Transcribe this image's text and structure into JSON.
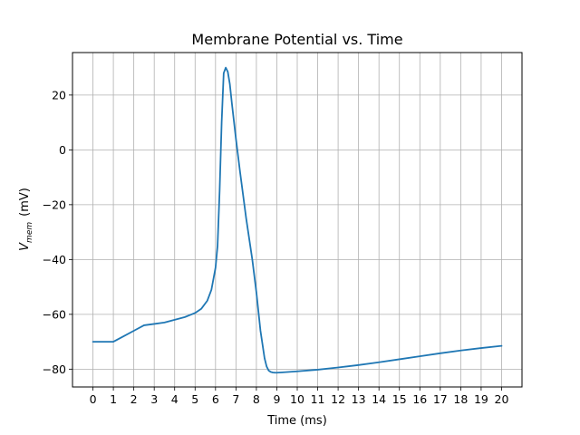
{
  "chart_data": {
    "type": "line",
    "title": "Membrane Potential vs. Time",
    "xlabel": "Time (ms)",
    "ylabel": {
      "base": "V",
      "sub": "mem",
      "unit": "(mV)"
    },
    "xlim": [
      -1,
      21
    ],
    "ylim": [
      -86.5,
      35.5
    ],
    "xticks": [
      0,
      1,
      2,
      3,
      4,
      5,
      6,
      7,
      8,
      9,
      10,
      11,
      12,
      13,
      14,
      15,
      16,
      17,
      18,
      19,
      20
    ],
    "xtick_labels": [
      "0",
      "1",
      "2",
      "3",
      "4",
      "5",
      "6",
      "7",
      "8",
      "9",
      "10",
      "11",
      "12",
      "13",
      "14",
      "15",
      "16",
      "17",
      "18",
      "19",
      "20"
    ],
    "yticks": [
      -80,
      -60,
      -40,
      -20,
      0,
      20
    ],
    "ytick_labels": [
      "−80",
      "−60",
      "−40",
      "−20",
      "0",
      "20"
    ],
    "grid": true,
    "series": [
      {
        "color": "#1f77b4",
        "x": [
          0,
          1,
          1.5,
          2,
          2.5,
          3,
          3.5,
          4,
          4.5,
          5,
          5.3,
          5.6,
          5.8,
          6.0,
          6.1,
          6.2,
          6.3,
          6.4,
          6.5,
          6.6,
          6.7,
          6.8,
          7.0,
          7.2,
          7.5,
          7.8,
          8.0,
          8.2,
          8.4,
          8.5,
          8.6,
          8.7,
          8.8,
          8.9,
          9.0,
          9.2,
          10,
          11,
          12,
          13,
          14,
          15,
          16,
          17,
          18,
          19,
          20
        ],
        "y": [
          -70,
          -70,
          -68,
          -66,
          -64,
          -63.5,
          -63,
          -62,
          -61,
          -59.5,
          -58,
          -55,
          -51,
          -43,
          -35,
          -15,
          10,
          28,
          30,
          28.5,
          24,
          17,
          4,
          -8,
          -25,
          -40,
          -52,
          -66,
          -76,
          -79,
          -80.5,
          -81,
          -81.2,
          -81.3,
          -81.3,
          -81.2,
          -80.8,
          -80.2,
          -79.4,
          -78.5,
          -77.5,
          -76.4,
          -75.3,
          -74.2,
          -73.2,
          -72.3,
          -71.5
        ]
      }
    ]
  }
}
